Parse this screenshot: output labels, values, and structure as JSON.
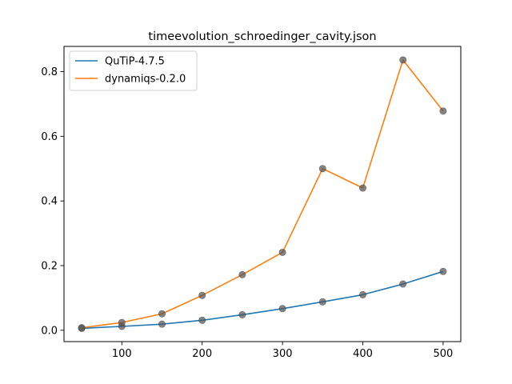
{
  "chart_data": {
    "type": "line",
    "title": "timeevolution_schroedinger_cavity.json",
    "xlabel": "",
    "ylabel": "",
    "x": [
      50,
      100,
      150,
      200,
      250,
      300,
      350,
      400,
      450,
      500
    ],
    "xlim": [
      28,
      522
    ],
    "ylim": [
      -0.035,
      0.878
    ],
    "xticks": [
      100,
      200,
      300,
      400,
      500
    ],
    "yticks": [
      0.0,
      0.2,
      0.4,
      0.6,
      0.8
    ],
    "ytick_labels": [
      "0.0",
      "0.2",
      "0.4",
      "0.6",
      "0.8"
    ],
    "grid": false,
    "legend_position": "top-left",
    "marker_color": "#555555",
    "series": [
      {
        "name": "QuTiP-4.7.5",
        "color": "#1f77b4",
        "values": [
          0.006,
          0.012,
          0.019,
          0.031,
          0.048,
          0.067,
          0.088,
          0.11,
          0.143,
          0.182
        ]
      },
      {
        "name": "dynamiqs-0.2.0",
        "color": "#ff7f0e",
        "values": [
          0.008,
          0.024,
          0.051,
          0.108,
          0.172,
          0.241,
          0.5,
          0.44,
          0.836,
          0.678
        ]
      }
    ]
  }
}
